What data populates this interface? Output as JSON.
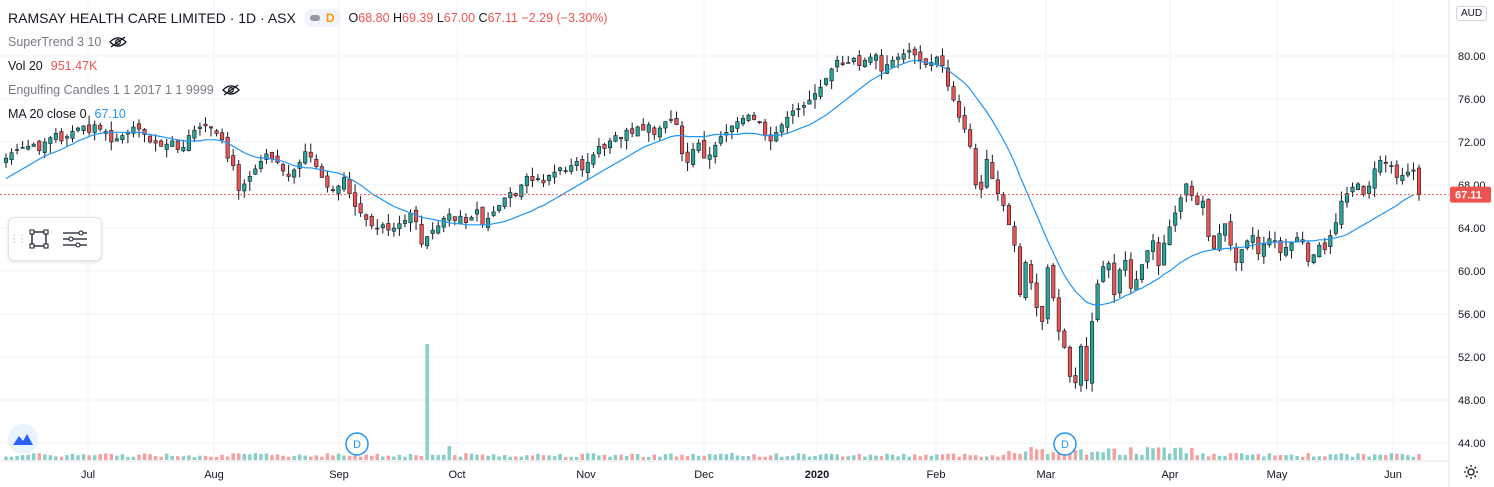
{
  "header": {
    "symbol_title": "RAMSAY HEALTH CARE LIMITED · 1D · ASX",
    "interval_badge": "D",
    "ohlc": {
      "open_label": "O",
      "open": "68.80",
      "high_label": "H",
      "high": "69.39",
      "low_label": "L",
      "low": "67.00",
      "close_label": "C",
      "close": "67.11",
      "change": "−2.29 (−3.30%)"
    }
  },
  "indicators": {
    "supertrend": "SuperTrend 3 10",
    "volume_label": "Vol 20",
    "volume_value": "951.47K",
    "engulfing": "Engulfing Candles 1 1 2017 1 1 9999",
    "ma_label": "MA 20 close 0",
    "ma_value": "67.10"
  },
  "icons": [
    "eye-off-icon",
    "rectangle-tool-icon",
    "text-settings-icon",
    "tradingview-logo-icon",
    "settings-gear-icon",
    "dividend-marker-icon"
  ],
  "colors": {
    "up": "#26a69a",
    "down": "#ef5350",
    "ma": "#2196f3",
    "grid": "#f0f3fa",
    "price_line": "#ef5350",
    "vol_up": "#26a69a",
    "vol_down": "#ef5350"
  },
  "chart_data": {
    "type": "candlestick",
    "currency": "AUD",
    "y_ticks": [
      "80.00",
      "76.00",
      "72.00",
      "68.00",
      "64.00",
      "60.00",
      "56.00",
      "52.00",
      "48.00",
      "44.00"
    ],
    "ylim": [
      43.5,
      82.5
    ],
    "x_ticks": [
      "Jul",
      "Aug",
      "Sep",
      "Oct",
      "Nov",
      "Dec",
      "2020",
      "Feb",
      "Mar",
      "Apr",
      "May",
      "Jun"
    ],
    "last_price_label": "67.11",
    "last_price": 67.11,
    "dividend_markers": [
      {
        "label": "D",
        "date": "Sep"
      },
      {
        "label": "D",
        "date": "Mar"
      }
    ],
    "series": [
      {
        "name": "Close",
        "values": [
          70.5,
          71.0,
          71.3,
          71.5,
          71.6,
          71.8,
          71.2,
          72.0,
          72.4,
          72.8,
          72.1,
          72.5,
          73.0,
          73.3,
          73.5,
          72.9,
          73.6,
          73.2,
          72.8,
          72.0,
          72.3,
          72.6,
          72.9,
          73.4,
          73.2,
          72.7,
          72.0,
          71.9,
          71.6,
          71.8,
          72.1,
          71.3,
          71.5,
          72.6,
          73.1,
          73.4,
          73.5,
          73.3,
          72.8,
          72.2,
          70.5,
          69.8,
          67.5,
          68.1,
          68.8,
          69.5,
          70.2,
          70.9,
          70.4,
          70.1,
          69.3,
          68.8,
          69.4,
          70.1,
          71.1,
          70.6,
          69.7,
          68.7,
          67.8,
          67.5,
          67.9,
          68.7,
          67.2,
          66.0,
          65.4,
          64.8,
          64.2,
          63.9,
          64.3,
          63.8,
          64.0,
          64.4,
          64.7,
          65.4,
          64.6,
          62.5,
          63.2,
          63.8,
          64.2,
          64.9,
          65.3,
          64.7,
          65.1,
          64.5,
          65.0,
          65.7,
          64.3,
          64.9,
          65.5,
          66.1,
          66.8,
          67.3,
          67.0,
          68.0,
          68.8,
          68.4,
          68.6,
          68.2,
          68.9,
          69.2,
          69.6,
          69.3,
          69.8,
          70.2,
          69.4,
          70.1,
          70.8,
          71.6,
          71.4,
          72.1,
          72.6,
          72.3,
          73.1,
          72.8,
          73.4,
          73.1,
          73.6,
          72.7,
          73.3,
          73.9,
          74.1,
          73.6,
          70.9,
          70.1,
          71.3,
          71.9,
          70.5,
          70.8,
          71.7,
          72.5,
          72.9,
          73.5,
          73.9,
          74.2,
          74.5,
          74.1,
          73.8,
          72.6,
          72.1,
          72.9,
          73.6,
          74.3,
          74.9,
          75.1,
          75.4,
          75.9,
          76.5,
          77.1,
          77.9,
          78.8,
          79.6,
          79.2,
          79.4,
          79.8,
          79.1,
          79.6,
          79.9,
          80.1,
          78.6,
          79.2,
          79.6,
          79.9,
          80.2,
          80.5,
          80.1,
          79.6,
          79.2,
          79.4,
          79.9,
          79.1,
          77.2,
          75.9,
          74.3,
          73.2,
          71.6,
          68.0,
          67.6,
          70.4,
          68.6,
          67.2,
          66.1,
          64.3,
          62.4,
          57.8,
          60.8,
          58.9,
          56.6,
          55.3,
          60.3,
          57.5,
          54.4,
          52.9,
          50.2,
          49.6,
          53.0,
          49.8,
          55.3,
          58.8,
          60.4,
          60.7,
          57.8,
          60.1,
          61.0,
          58.4,
          59.2,
          60.6,
          61.9,
          62.8,
          60.5,
          62.6,
          64.1,
          65.4,
          66.8,
          68.1,
          67.0,
          66.2,
          66.5,
          63.2,
          62.1,
          63.5,
          64.4,
          62.4,
          60.8,
          62.0,
          62.8,
          63.3,
          61.6,
          62.5,
          63.0,
          62.8,
          61.7,
          62.2,
          62.6,
          63.1,
          62.7,
          60.9,
          61.5,
          62.4,
          62.0,
          63.3,
          64.5,
          66.5,
          67.2,
          67.8,
          68.1,
          67.1,
          67.9,
          69.5,
          70.3,
          70.0,
          69.8,
          68.7,
          68.9,
          69.2,
          69.4,
          67.11
        ]
      },
      {
        "name": "MA 20",
        "values": [
          68.6,
          68.9,
          69.2,
          69.5,
          69.8,
          70.1,
          70.4,
          70.7,
          70.9,
          71.1,
          71.3,
          71.6,
          71.8,
          72.1,
          72.3,
          72.5,
          72.7,
          72.8,
          72.9,
          72.9,
          72.9,
          72.9,
          72.9,
          72.9,
          72.9,
          72.8,
          72.7,
          72.6,
          72.5,
          72.4,
          72.3,
          72.2,
          72.1,
          72.1,
          72.1,
          72.1,
          72.2,
          72.2,
          72.2,
          72.1,
          71.9,
          71.6,
          71.3,
          71.0,
          70.8,
          70.6,
          70.5,
          70.5,
          70.4,
          70.3,
          70.2,
          70.0,
          69.8,
          69.7,
          69.6,
          69.6,
          69.5,
          69.4,
          69.3,
          69.2,
          69.1,
          68.9,
          68.6,
          68.3,
          68.0,
          67.6,
          67.2,
          66.9,
          66.6,
          66.3,
          66.0,
          65.8,
          65.6,
          65.4,
          65.2,
          65.0,
          64.9,
          64.8,
          64.7,
          64.6,
          64.5,
          64.4,
          64.4,
          64.3,
          64.3,
          64.3,
          64.3,
          64.3,
          64.4,
          64.5,
          64.6,
          64.8,
          65.0,
          65.2,
          65.4,
          65.6,
          65.9,
          66.1,
          66.4,
          66.7,
          67.0,
          67.3,
          67.6,
          67.9,
          68.2,
          68.5,
          68.8,
          69.1,
          69.4,
          69.7,
          70.0,
          70.3,
          70.6,
          70.9,
          71.2,
          71.5,
          71.7,
          71.9,
          72.1,
          72.3,
          72.5,
          72.6,
          72.6,
          72.5,
          72.5,
          72.5,
          72.5,
          72.6,
          72.7,
          72.7,
          72.7,
          72.7,
          72.7,
          72.8,
          72.8,
          72.8,
          72.7,
          72.6,
          72.6,
          72.6,
          72.7,
          72.8,
          73.0,
          73.2,
          73.4,
          73.6,
          73.9,
          74.2,
          74.5,
          74.9,
          75.3,
          75.7,
          76.1,
          76.5,
          76.9,
          77.3,
          77.7,
          78.0,
          78.3,
          78.6,
          78.9,
          79.1,
          79.3,
          79.5,
          79.6,
          79.5,
          79.4,
          79.3,
          79.2,
          79.0,
          78.7,
          78.3,
          77.9,
          77.5,
          76.9,
          76.2,
          75.5,
          74.8,
          74.0,
          73.1,
          72.2,
          71.2,
          70.1,
          68.8,
          67.6,
          66.4,
          65.2,
          64.0,
          62.8,
          61.7,
          60.6,
          59.6,
          58.8,
          58.1,
          57.6,
          57.1,
          56.9,
          56.8,
          56.9,
          57.0,
          57.2,
          57.4,
          57.7,
          57.9,
          58.2,
          58.4,
          58.7,
          59.0,
          59.3,
          59.7,
          60.0,
          60.4,
          60.8,
          61.1,
          61.4,
          61.6,
          61.8,
          61.9,
          62.0,
          62.0,
          62.1,
          62.1,
          62.2,
          62.2,
          62.3,
          62.4,
          62.5,
          62.6,
          62.6,
          62.7,
          62.7,
          62.7,
          62.7,
          62.7,
          62.8,
          62.8,
          62.8,
          62.9,
          62.9,
          63.0,
          63.1,
          63.2,
          63.4,
          63.7,
          64.0,
          64.3,
          64.6,
          64.9,
          65.2,
          65.5,
          65.8,
          66.1,
          66.5,
          66.8,
          67.1
        ]
      }
    ],
    "volume_spike_index": 76
  }
}
